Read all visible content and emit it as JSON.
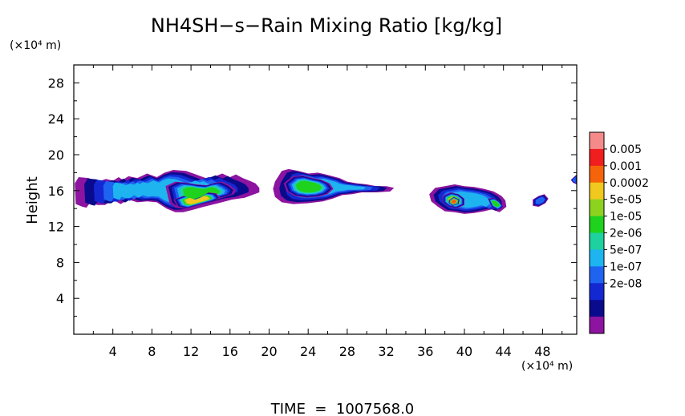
{
  "chart_data": {
    "type": "heatmap",
    "title": "NH4SH−s−Rain Mixing Ratio [kg/kg]",
    "ylabel": "Height",
    "y_unit": "(×10⁴ m)",
    "x_unit": "(×10⁴ m)",
    "footer": "TIME  =  1007568.0",
    "xlim": [
      0,
      51.5
    ],
    "ylim": [
      0,
      30
    ],
    "x_ticks": [
      4,
      8,
      12,
      16,
      20,
      24,
      28,
      32,
      36,
      40,
      44,
      48
    ],
    "x_tick_labels": [
      "4",
      "8",
      "12",
      "16",
      "20",
      "24",
      "28",
      "32",
      "36",
      "40",
      "44",
      "48"
    ],
    "y_ticks": [
      4,
      8,
      12,
      16,
      20,
      24,
      28
    ],
    "y_tick_labels": [
      "4",
      "8",
      "12",
      "16",
      "20",
      "24",
      "28"
    ],
    "colorbar": {
      "labels": [
        "0.005",
        "0.001",
        "0.0002",
        "5e-05",
        "1e-05",
        "2e-06",
        "5e-07",
        "1e-07",
        "2e-08"
      ],
      "colors": [
        "#f58a8a",
        "#f01e1e",
        "#f5640a",
        "#f0c81e",
        "#8cd21e",
        "#1ed21e",
        "#1ed2a0",
        "#1eb4f0",
        "#1e64f0",
        "#1428d2",
        "#0a0a8c",
        "#8c14a0"
      ]
    },
    "clouds": [
      {
        "name": "cloud-a",
        "level": 7,
        "x": [
          0.1,
          0.5,
          1.5,
          2.5,
          3.3,
          4.0,
          4.6,
          5.0,
          5.6,
          6.5,
          7.5,
          8.5,
          9.3,
          10.2,
          11.5,
          12.5,
          13.5,
          14.5,
          15.2,
          16.0,
          16.6,
          17.3,
          18.0,
          18.6,
          19.0,
          19.0,
          17.5,
          16.2,
          14.8,
          13.3,
          12.0,
          11.2,
          10.4,
          9.5,
          8.5,
          7.5,
          6.5,
          5.6,
          4.8,
          4.0,
          3.2,
          2.4,
          1.7,
          1.3,
          0.9,
          0.2
        ],
        "y": [
          16.8,
          17.5,
          17.4,
          17.0,
          17.3,
          17.1,
          17.5,
          17.2,
          17.6,
          17.4,
          17.9,
          17.5,
          18.0,
          18.3,
          18.2,
          17.8,
          17.4,
          17.6,
          17.9,
          17.5,
          17.8,
          17.4,
          17.1,
          16.8,
          16.3,
          15.8,
          15.2,
          15.0,
          14.6,
          14.2,
          13.8,
          13.6,
          13.6,
          14.0,
          14.7,
          14.8,
          14.7,
          15.0,
          14.5,
          15.0,
          14.4,
          14.4,
          14.7,
          14.1,
          14.2,
          14.5
        ]
      },
      {
        "name": "cloud-a-core",
        "level": 5,
        "x": [
          9.4,
          10.4,
          11.5,
          12.5,
          13.6,
          14.5,
          15.2,
          16.0,
          16.6,
          16.4,
          15.5,
          14.6,
          13.4,
          12.2,
          11.2,
          10.4,
          9.8
        ],
        "y": [
          16.5,
          17.0,
          16.9,
          16.7,
          16.6,
          16.9,
          17.0,
          16.6,
          16.1,
          15.6,
          15.3,
          15.0,
          14.6,
          14.3,
          14.0,
          14.1,
          14.6
        ]
      },
      {
        "name": "cloud-a-hot",
        "level": 3,
        "x": [
          10.2,
          11.2,
          12.2,
          13.0,
          13.8,
          14.6,
          15.0,
          14.4,
          13.4,
          12.4,
          11.4,
          10.6
        ],
        "y": [
          15.0,
          15.4,
          15.0,
          15.3,
          15.8,
          15.7,
          15.2,
          14.9,
          14.6,
          14.3,
          14.0,
          14.2
        ]
      },
      {
        "name": "cloud-b",
        "level": 7,
        "x": [
          20.6,
          21.3,
          22.0,
          23.0,
          24.0,
          25.0,
          25.8,
          26.5,
          27.2,
          28.0,
          29.0,
          30.0,
          31.0,
          32.0,
          32.8,
          32.4,
          31.0,
          29.5,
          28.5,
          27.5,
          26.5,
          25.5,
          24.0,
          22.5,
          21.3,
          20.6,
          20.4
        ],
        "y": [
          17.0,
          18.2,
          18.4,
          18.2,
          17.9,
          18.0,
          17.8,
          17.6,
          17.4,
          17.0,
          16.8,
          16.7,
          16.5,
          16.5,
          16.3,
          15.9,
          15.8,
          15.8,
          15.6,
          15.5,
          15.1,
          14.8,
          14.6,
          14.5,
          14.7,
          15.3,
          16.2
        ]
      },
      {
        "name": "cloud-b-core",
        "level": 5,
        "x": [
          21.5,
          22.4,
          23.4,
          24.5,
          25.4,
          26.2,
          26.6,
          26.0,
          25.0,
          23.8,
          22.6,
          21.8
        ],
        "y": [
          16.8,
          17.6,
          17.7,
          17.4,
          17.2,
          16.8,
          16.2,
          15.6,
          15.3,
          15.2,
          15.4,
          15.9
        ]
      },
      {
        "name": "cloud-c",
        "level": 7,
        "x": [
          36.4,
          37.0,
          38.0,
          39.0,
          40.0,
          41.0,
          42.0,
          43.0,
          43.8,
          44.2,
          44.3,
          43.6,
          42.8,
          42.0,
          41.0,
          40.0,
          39.0,
          38.0,
          37.3,
          36.6
        ],
        "y": [
          15.6,
          16.3,
          16.5,
          16.7,
          16.5,
          16.4,
          16.2,
          15.9,
          15.4,
          14.9,
          14.2,
          13.6,
          13.9,
          13.7,
          13.5,
          13.4,
          13.6,
          13.7,
          14.2,
          14.8
        ]
      },
      {
        "name": "cloud-c-core",
        "level": 4,
        "x": [
          37.8,
          38.6,
          39.4,
          40.0,
          40.0,
          39.2,
          38.4,
          37.8
        ],
        "y": [
          15.4,
          15.8,
          15.6,
          15.1,
          14.4,
          14.0,
          14.2,
          14.7
        ]
      },
      {
        "name": "cloud-c-hot",
        "level": 2,
        "x": [
          38.4,
          38.9,
          39.5,
          39.4,
          38.8,
          38.4
        ],
        "y": [
          14.9,
          15.3,
          15.0,
          14.5,
          14.3,
          14.6
        ]
      },
      {
        "name": "cloud-c-tail",
        "level": 5,
        "x": [
          42.4,
          43.0,
          43.6,
          44.0,
          43.5,
          42.8
        ],
        "y": [
          15.1,
          15.2,
          14.8,
          14.2,
          13.8,
          14.2
        ]
      },
      {
        "name": "cloud-d",
        "level": 8,
        "x": [
          47.0,
          47.6,
          48.2,
          48.6,
          48.3,
          47.6,
          47.0
        ],
        "y": [
          15.0,
          15.4,
          15.6,
          15.1,
          14.6,
          14.2,
          14.3
        ]
      },
      {
        "name": "cloud-e",
        "level": 8,
        "x": [
          50.9,
          51.5,
          51.5,
          51.1
        ],
        "y": [
          17.2,
          17.8,
          16.7,
          16.9
        ]
      }
    ]
  }
}
